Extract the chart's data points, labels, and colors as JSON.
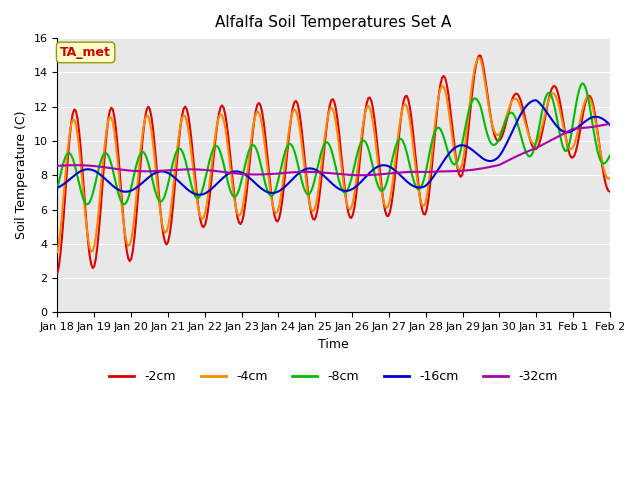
{
  "title": "Alfalfa Soil Temperatures Set A",
  "xlabel": "Time",
  "ylabel": "Soil Temperature (C)",
  "ylim": [
    0,
    16
  ],
  "yticks": [
    0,
    2,
    4,
    6,
    8,
    10,
    12,
    14,
    16
  ],
  "x_labels": [
    "Jan 18",
    "Jan 19",
    "Jan 20",
    "Jan 21",
    "Jan 22",
    "Jan 23",
    "Jan 24",
    "Jan 25",
    "Jan 26",
    "Jan 27",
    "Jan 28",
    "Jan 29",
    "Jan 30",
    "Jan 31",
    "Feb 1",
    "Feb 2"
  ],
  "legend_labels": [
    "-2cm",
    "-4cm",
    "-8cm",
    "-16cm",
    "-32cm"
  ],
  "colors": {
    "-2cm": "#dd0000",
    "-4cm": "#ff8800",
    "-8cm": "#00bb00",
    "-16cm": "#0000cc",
    "-32cm": "#aa00aa"
  },
  "annotation_text": "TA_met",
  "annotation_color": "#cc0000",
  "annotation_bg": "#ffffcc",
  "bg_color": "#e8e8e8",
  "line_width": 1.5
}
